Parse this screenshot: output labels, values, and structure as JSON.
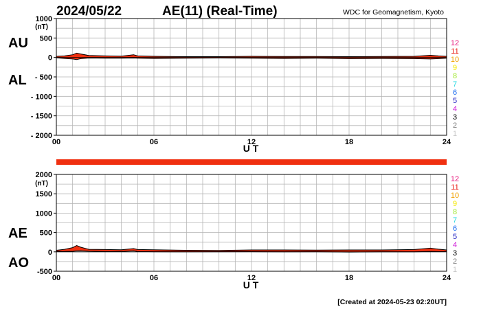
{
  "header": {
    "date": "2024/05/22",
    "title": "AE(11) (Real-Time)",
    "source": "WDC for Geomagnetism, Kyoto"
  },
  "footer": {
    "created": "[Created at 2024-05-23 02:20UT]"
  },
  "legend_levels": [
    {
      "label": "12",
      "color": "#e8187c"
    },
    {
      "label": "11",
      "color": "#e8140c"
    },
    {
      "label": "10",
      "color": "#f0a000"
    },
    {
      "label": "9",
      "color": "#f4e800"
    },
    {
      "label": "8",
      "color": "#a0e830"
    },
    {
      "label": "7",
      "color": "#20d8e0"
    },
    {
      "label": "6",
      "color": "#2070f0"
    },
    {
      "label": "5",
      "color": "#2020c0"
    },
    {
      "label": "4",
      "color": "#d020d8"
    },
    {
      "label": "3",
      "color": "#000000"
    },
    {
      "label": "2",
      "color": "#808080"
    },
    {
      "label": "1",
      "color": "#c8c8c8"
    }
  ],
  "colors": {
    "fill": "#f03010",
    "line": "#000000",
    "grid": "#b4b4b4",
    "status_bar": "#f03010"
  },
  "chart_data": [
    {
      "type": "area",
      "series_labels": [
        "AU",
        "AL"
      ],
      "unit": "(nT)",
      "xlabel": "U T",
      "xlim": [
        0,
        24
      ],
      "xticks": [
        "00",
        "06",
        "12",
        "18",
        "24"
      ],
      "ylim": [
        -2000,
        1000
      ],
      "yticks": [
        "1000",
        "500",
        "0",
        "- 500",
        "- 1000",
        "- 1500",
        "- 2000"
      ],
      "grid": true,
      "x": [
        0,
        0.5,
        1,
        1.25,
        1.5,
        2,
        3,
        4,
        4.75,
        5,
        6,
        8,
        10,
        12,
        14,
        16,
        18,
        20,
        22,
        23,
        23.5,
        24
      ],
      "series": [
        {
          "values": [
            30,
            40,
            70,
            110,
            90,
            50,
            40,
            35,
            70,
            40,
            30,
            20,
            20,
            30,
            25,
            25,
            20,
            25,
            30,
            55,
            40,
            30
          ]
        },
        {
          "values": [
            -10,
            -25,
            -40,
            -55,
            -30,
            -15,
            -20,
            -20,
            -15,
            -20,
            -25,
            -20,
            -15,
            -20,
            -25,
            -20,
            -30,
            -25,
            -30,
            -40,
            -30,
            -20
          ]
        }
      ]
    },
    {
      "type": "area",
      "series_labels": [
        "AE",
        "AO"
      ],
      "unit": "(nT)",
      "xlabel": "U T",
      "xlim": [
        0,
        24
      ],
      "xticks": [
        "00",
        "06",
        "12",
        "18",
        "24"
      ],
      "ylim": [
        -500,
        2000
      ],
      "yticks": [
        "2000",
        "1500",
        "1000",
        "500",
        "0",
        "-500"
      ],
      "grid": true,
      "x": [
        0,
        0.5,
        1,
        1.25,
        1.5,
        2,
        3,
        4,
        4.75,
        5,
        6,
        8,
        10,
        12,
        14,
        16,
        18,
        20,
        22,
        23,
        23.5,
        24
      ],
      "series": [
        {
          "values": [
            40,
            65,
            110,
            165,
            120,
            65,
            60,
            55,
            85,
            60,
            55,
            40,
            35,
            50,
            50,
            45,
            50,
            50,
            60,
            95,
            70,
            50
          ]
        },
        {
          "values": [
            10,
            8,
            15,
            28,
            30,
            18,
            10,
            8,
            28,
            10,
            3,
            0,
            3,
            5,
            0,
            3,
            -5,
            0,
            0,
            8,
            5,
            5
          ]
        }
      ]
    }
  ]
}
